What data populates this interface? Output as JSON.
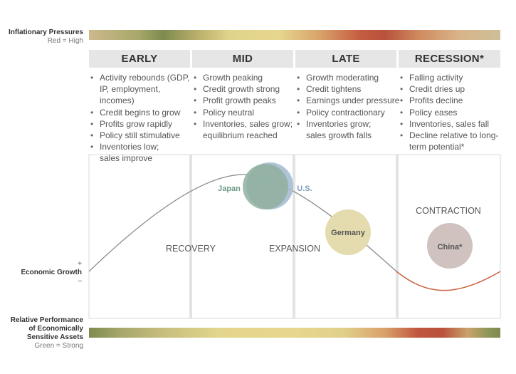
{
  "inflation": {
    "label": "Inflationary Pressures",
    "sublabel": "Red = High"
  },
  "phases": [
    {
      "name": "EARLY",
      "bullets": [
        "Activity rebounds (GDP, IP, employment, incomes)",
        "Credit begins to grow",
        "Profits grow rapidly",
        "Policy still stimulative",
        "Inventories low; sales improve"
      ]
    },
    {
      "name": "MID",
      "bullets": [
        "Growth peaking",
        "Credit growth strong",
        "Profit growth peaks",
        "Policy neutral",
        "Inventories, sales grow; equilibrium reached"
      ]
    },
    {
      "name": "LATE",
      "bullets": [
        "Growth moderating",
        "Credit tightens",
        "Earnings under pressure",
        "Policy contractionary",
        "Inventories grow; sales growth falls"
      ]
    },
    {
      "name": "RECESSION*",
      "bullets": [
        "Falling activity",
        "Credit dries up",
        "Profits decline",
        "Policy eases",
        "Inventories, sales fall",
        "Decline relative to long-term potential*"
      ]
    }
  ],
  "regions": {
    "recovery": "RECOVERY",
    "expansion": "EXPANSION",
    "contraction": "CONTRACTION"
  },
  "countries": {
    "japan": "Japan",
    "us": "U.S.",
    "germany": "Germany",
    "china": "China*"
  },
  "economic_growth": {
    "label": "Economic Growth",
    "plus": "+",
    "minus": "–"
  },
  "relative_performance": {
    "line1": "Relative Performance",
    "line2": "of Economically",
    "line3": "Sensitive Assets",
    "sublabel": "Green = Strong"
  },
  "colors": {
    "curve_growth": "#8a8a8a",
    "curve_contraction": "#c8623f",
    "japan": "#8fb09e",
    "us": "#a5bcd2",
    "germany": "#e4dcae",
    "china": "#cfc2bf"
  }
}
